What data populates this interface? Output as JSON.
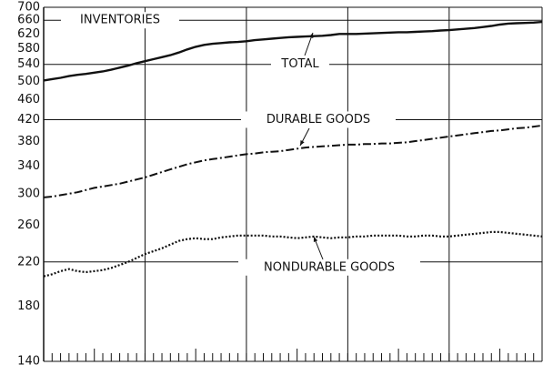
{
  "chart_data": {
    "type": "line",
    "log_y": true,
    "ylim": [
      140,
      700
    ],
    "yticks": [
      140,
      180,
      220,
      260,
      300,
      340,
      380,
      420,
      460,
      500,
      540,
      580,
      620,
      660,
      700
    ],
    "grid_y": [
      660,
      540,
      420,
      220
    ],
    "annotations": [
      "INVENTORIES"
    ],
    "series": [
      {
        "name": "TOTAL",
        "color": "#111111",
        "style": "solid",
        "values": [
          502,
          505,
          508,
          512,
          515,
          517,
          520,
          523,
          527,
          532,
          537,
          543,
          548,
          553,
          558,
          563,
          570,
          578,
          585,
          590,
          593,
          595,
          597,
          598,
          600,
          603,
          605,
          607,
          609,
          611,
          612,
          613,
          614,
          615,
          617,
          620,
          620,
          620,
          621,
          622,
          623,
          624,
          625,
          625,
          626,
          627,
          628,
          630,
          631,
          633,
          635,
          637,
          640,
          643,
          647,
          650,
          651,
          652,
          653,
          655
        ]
      },
      {
        "name": "DURABLE GOODS",
        "color": "#111111",
        "style": "dashdot",
        "values": [
          295,
          296,
          298,
          300,
          302,
          305,
          308,
          310,
          312,
          314,
          317,
          320,
          323,
          327,
          331,
          335,
          339,
          343,
          346,
          349,
          351,
          353,
          355,
          357,
          359,
          360,
          362,
          363,
          364,
          366,
          368,
          370,
          371,
          372,
          373,
          374,
          375,
          375,
          376,
          376,
          377,
          377,
          378,
          379,
          381,
          383,
          385,
          387,
          389,
          391,
          393,
          395,
          397,
          399,
          400,
          402,
          404,
          405,
          407,
          409
        ]
      },
      {
        "name": "NONDURABLE GOODS",
        "color": "#111111",
        "style": "dotted",
        "values": [
          206,
          208,
          211,
          213,
          211,
          210,
          211,
          212,
          214,
          217,
          220,
          224,
          228,
          231,
          234,
          238,
          242,
          244,
          245,
          244,
          244,
          246,
          247,
          248,
          248,
          248,
          248,
          247,
          247,
          246,
          245,
          246,
          247,
          246,
          245,
          246,
          246,
          247,
          247,
          248,
          248,
          248,
          248,
          247,
          247,
          248,
          248,
          247,
          247,
          248,
          249,
          250,
          251,
          252,
          252,
          251,
          250,
          249,
          248,
          247
        ]
      }
    ]
  }
}
